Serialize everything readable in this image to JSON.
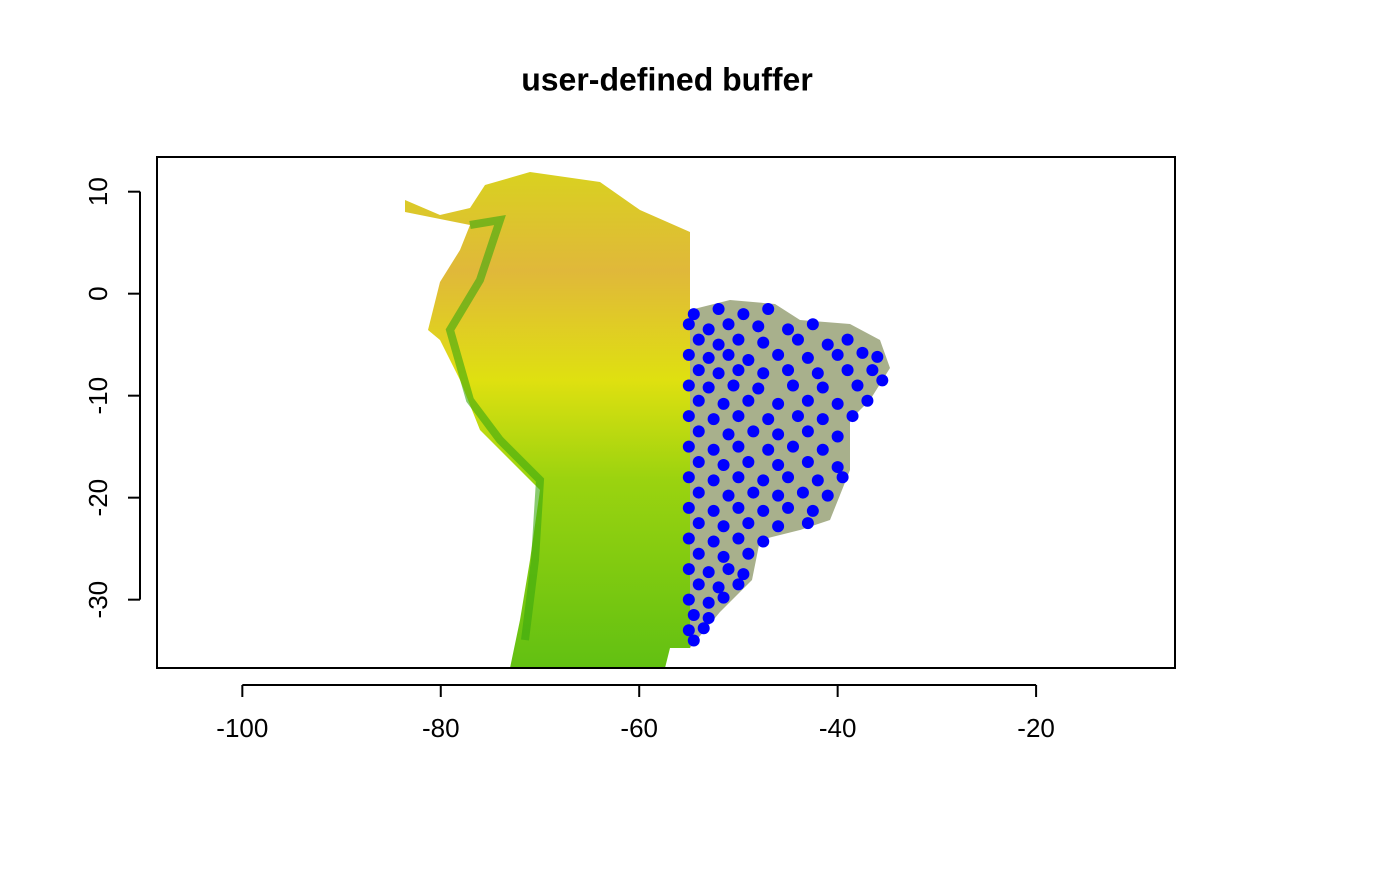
{
  "chart_data": {
    "type": "scatter",
    "title": "user-defined buffer",
    "xlim": [
      -108.6,
      -6.0
    ],
    "ylim": [
      -36.7,
      13.4
    ],
    "xticks": [
      -100,
      -80,
      -60,
      -40,
      -20
    ],
    "yticks": [
      10,
      0,
      -10,
      -20,
      -30
    ],
    "series": [
      {
        "color": "#0000ff",
        "x": [
          -54.5,
          -52,
          -49.5,
          -47,
          -55,
          -53,
          -51,
          -48,
          -45,
          -42.5,
          -54,
          -52,
          -50,
          -47.5,
          -44,
          -41,
          -39,
          -55,
          -53,
          -51,
          -49,
          -46,
          -43,
          -40,
          -37.5,
          -36,
          -54,
          -52,
          -50,
          -47.5,
          -45,
          -42,
          -39,
          -36.5,
          -55,
          -53,
          -50.5,
          -48,
          -44.5,
          -41.5,
          -38,
          -35.5,
          -54,
          -51.5,
          -49,
          -46,
          -43,
          -40,
          -37,
          -55,
          -52.5,
          -50,
          -47,
          -44,
          -41.5,
          -38.5,
          -54,
          -51,
          -48.5,
          -46,
          -43,
          -40,
          -55,
          -52.5,
          -50,
          -47,
          -44.5,
          -41.5,
          -54,
          -51.5,
          -49,
          -46,
          -43,
          -40,
          -55,
          -52.5,
          -50,
          -47.5,
          -45,
          -42,
          -39.5,
          -54,
          -51,
          -48.5,
          -46,
          -43.5,
          -41,
          -55,
          -52.5,
          -50,
          -47.5,
          -45,
          -42.5,
          -54,
          -51.5,
          -49,
          -46,
          -43,
          -55,
          -52.5,
          -50,
          -47.5,
          -54,
          -51.5,
          -49,
          -55,
          -53,
          -51,
          -49.5,
          -54,
          -52,
          -50,
          -55,
          -53,
          -51.5,
          -54.5,
          -53,
          -55,
          -53.5,
          -54.5
        ],
        "y": [
          -2,
          -1.5,
          -2,
          -1.5,
          -3,
          -3.5,
          -3,
          -3.2,
          -3.5,
          -3,
          -4.5,
          -5,
          -4.5,
          -4.8,
          -4.5,
          -5,
          -4.5,
          -6,
          -6.3,
          -6,
          -6.5,
          -6,
          -6.3,
          -6,
          -5.8,
          -6.2,
          -7.5,
          -7.8,
          -7.5,
          -7.8,
          -7.5,
          -7.8,
          -7.5,
          -7.5,
          -9,
          -9.2,
          -9,
          -9.3,
          -9,
          -9.2,
          -9,
          -8.5,
          -10.5,
          -10.8,
          -10.5,
          -10.8,
          -10.5,
          -10.8,
          -10.5,
          -12,
          -12.3,
          -12,
          -12.3,
          -12,
          -12.3,
          -12,
          -13.5,
          -13.8,
          -13.5,
          -13.8,
          -13.5,
          -14,
          -15,
          -15.3,
          -15,
          -15.3,
          -15,
          -15.3,
          -16.5,
          -16.8,
          -16.5,
          -16.8,
          -16.5,
          -17,
          -18,
          -18.3,
          -18,
          -18.3,
          -18,
          -18.3,
          -18,
          -19.5,
          -19.8,
          -19.5,
          -19.8,
          -19.5,
          -19.8,
          -21,
          -21.3,
          -21,
          -21.3,
          -21,
          -21.3,
          -22.5,
          -22.8,
          -22.5,
          -22.8,
          -22.5,
          -24,
          -24.3,
          -24,
          -24.3,
          -25.5,
          -25.8,
          -25.5,
          -27,
          -27.3,
          -27,
          -27.5,
          -28.5,
          -28.8,
          -28.5,
          -30,
          -30.3,
          -29.8,
          -31.5,
          -31.8,
          -33,
          -32.8,
          -34
        ]
      }
    ]
  }
}
